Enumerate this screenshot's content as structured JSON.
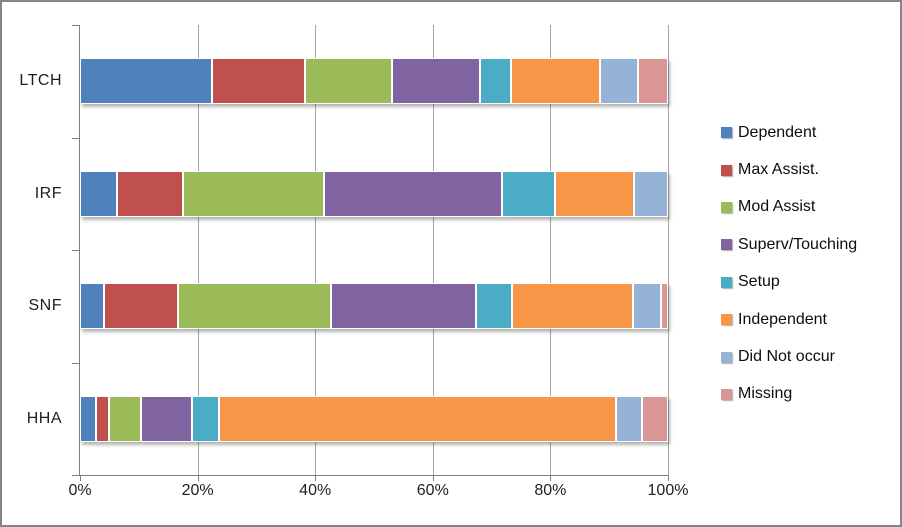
{
  "frame": {
    "background": "#ffffff",
    "border_color": "#858585",
    "axis_color": "#7f7f7f",
    "gridline_color": "#a6a6a6",
    "text_color": "#1f1f1f"
  },
  "chart_data": {
    "type": "bar",
    "subtype": "horizontal-100pct-stacked",
    "title": "",
    "xlabel": "",
    "ylabel": "",
    "categories": [
      "LTCH",
      "IRF",
      "SNF",
      "HHA"
    ],
    "series": [
      {
        "name": "Dependent",
        "color": "#4F81BD",
        "values": [
          22.4,
          6.3,
          4.1,
          2.8
        ]
      },
      {
        "name": "Max Assist.",
        "color": "#C0504D",
        "values": [
          15.9,
          11.2,
          12.5,
          2.2
        ]
      },
      {
        "name": "Mod Assist",
        "color": "#9BBB59",
        "values": [
          14.7,
          24.0,
          26.1,
          5.3
        ]
      },
      {
        "name": "Superv/Touching",
        "color": "#8064A2",
        "values": [
          15.1,
          30.3,
          24.7,
          8.8
        ]
      },
      {
        "name": "Setup",
        "color": "#4BACC6",
        "values": [
          5.2,
          9.0,
          6.0,
          4.6
        ]
      },
      {
        "name": "Independent",
        "color": "#F79646",
        "values": [
          15.1,
          13.4,
          20.7,
          67.5
        ]
      },
      {
        "name": "Did Not occur",
        "color": "#95B3D7",
        "values": [
          6.5,
          5.8,
          4.7,
          4.4
        ]
      },
      {
        "name": "Missing",
        "color": "#D99694",
        "values": [
          5.1,
          0.0,
          1.2,
          4.4
        ]
      }
    ],
    "x_axis": {
      "min": 0,
      "max": 100,
      "tick_step": 20,
      "ticks": [
        "0%",
        "20%",
        "40%",
        "60%",
        "80%",
        "100%"
      ],
      "grid": true
    },
    "legend_position": "right"
  }
}
